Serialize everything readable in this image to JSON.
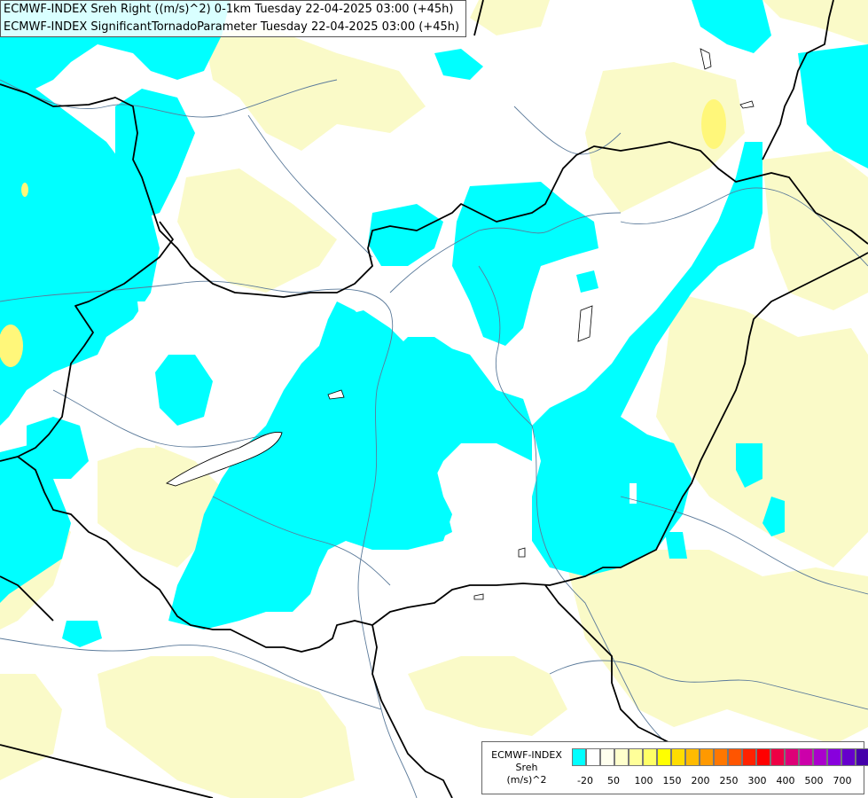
{
  "title_lines": [
    "ECMWF-INDEX Sreh Right ((m/s)^2) 0-1km Tuesday 22-04-2025 03:00 (+45h)",
    "ECMWF-INDEX SignificantTornadoParameter Tuesday 22-04-2025 03:00 (+45h)"
  ],
  "legend": {
    "line1": "ECMWF-INDEX",
    "line2": "Sreh",
    "line3": "(m/s)^2",
    "ticks": [
      "-20",
      "50",
      "100",
      "150",
      "200",
      "250",
      "300",
      "400",
      "500",
      "700"
    ],
    "colors": [
      "#00ffff",
      "#ffffff",
      "#ffffee",
      "#ffffcc",
      "#ffff99",
      "#ffff66",
      "#ffff00",
      "#ffdd00",
      "#ffbb00",
      "#ff9900",
      "#ff7700",
      "#ff5500",
      "#ff2200",
      "#ff0000",
      "#ee0044",
      "#dd0077",
      "#cc00aa",
      "#aa00cc",
      "#8800dd",
      "#6600cc",
      "#4400aa",
      "#220088"
    ]
  },
  "colors": {
    "cyan": "#00ffff",
    "pale_yellow": "#fafac8",
    "yellow": "#fff77a",
    "border": "#000000",
    "river": "#5b7a9a"
  }
}
